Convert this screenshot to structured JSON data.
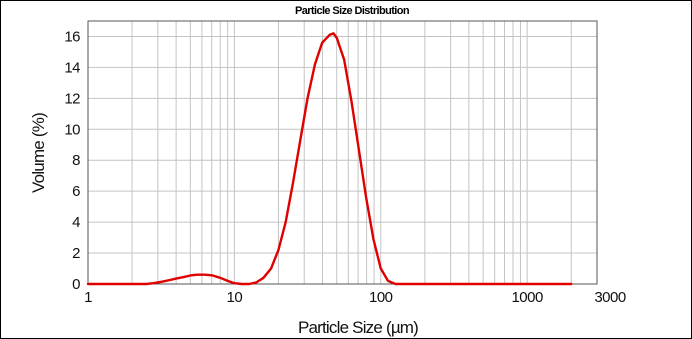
{
  "chart_data": {
    "type": "line",
    "title": "Particle Size Distribution",
    "xlabel": "Particle Size (µm)",
    "ylabel": "Volume (%)",
    "xscale": "log",
    "xlim": [
      1,
      3000
    ],
    "ylim": [
      0,
      17
    ],
    "xticks": [
      1,
      10,
      100,
      1000,
      3000
    ],
    "xtick_labels": [
      "1",
      "10",
      "100",
      "1000",
      "3000"
    ],
    "yticks": [
      0,
      2,
      4,
      6,
      8,
      10,
      12,
      14,
      16
    ],
    "ytick_labels": [
      "0",
      "2",
      "4",
      "6",
      "8",
      "10",
      "12",
      "14",
      "16"
    ],
    "grid": true,
    "legend": "none",
    "series_color": "#e00000",
    "series": [
      {
        "x": [
          1,
          1.5,
          2,
          2.5,
          2.8,
          3.2,
          3.6,
          4.0,
          4.5,
          5.0,
          5.6,
          6.3,
          7.1,
          8.0,
          9.0,
          10,
          11.2,
          12.6,
          14.1,
          15.8,
          17.8,
          20,
          22.4,
          25.1,
          28.2,
          31.6,
          35.5,
          39.8,
          44.7,
          47.5,
          50.1,
          56.2,
          63.1,
          70.8,
          79.4,
          89.1,
          100,
          112,
          126,
          141,
          158,
          200,
          500,
          1000,
          2000
        ],
        "y": [
          0,
          0,
          0,
          0,
          0.05,
          0.15,
          0.25,
          0.35,
          0.45,
          0.55,
          0.6,
          0.6,
          0.55,
          0.4,
          0.2,
          0.05,
          0,
          0,
          0.1,
          0.4,
          1.0,
          2.2,
          4.0,
          6.5,
          9.3,
          12.0,
          14.2,
          15.6,
          16.1,
          16.2,
          15.9,
          14.5,
          11.8,
          8.7,
          5.6,
          2.9,
          1.0,
          0.2,
          0,
          0,
          0,
          0,
          0,
          0,
          0
        ]
      }
    ]
  }
}
